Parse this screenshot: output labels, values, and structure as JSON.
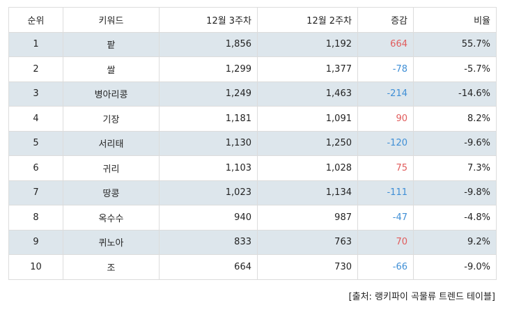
{
  "table": {
    "headers": {
      "rank": "순위",
      "keyword": "키워드",
      "week3": "12월 3주차",
      "week2": "12월 2주차",
      "change": "증감",
      "ratio": "비율"
    },
    "rows": [
      {
        "rank": "1",
        "keyword": "팥",
        "week3": "1,856",
        "week2": "1,192",
        "change": "664",
        "ratio": "55.7%",
        "trend": "up"
      },
      {
        "rank": "2",
        "keyword": "쌀",
        "week3": "1,299",
        "week2": "1,377",
        "change": "-78",
        "ratio": "-5.7%",
        "trend": "down"
      },
      {
        "rank": "3",
        "keyword": "병아리콩",
        "week3": "1,249",
        "week2": "1,463",
        "change": "-214",
        "ratio": "-14.6%",
        "trend": "down"
      },
      {
        "rank": "4",
        "keyword": "기장",
        "week3": "1,181",
        "week2": "1,091",
        "change": "90",
        "ratio": "8.2%",
        "trend": "up"
      },
      {
        "rank": "5",
        "keyword": "서리태",
        "week3": "1,130",
        "week2": "1,250",
        "change": "-120",
        "ratio": "-9.6%",
        "trend": "down"
      },
      {
        "rank": "6",
        "keyword": "귀리",
        "week3": "1,103",
        "week2": "1,028",
        "change": "75",
        "ratio": "7.3%",
        "trend": "up"
      },
      {
        "rank": "7",
        "keyword": "땅콩",
        "week3": "1,023",
        "week2": "1,134",
        "change": "-111",
        "ratio": "-9.8%",
        "trend": "down"
      },
      {
        "rank": "8",
        "keyword": "옥수수",
        "week3": "940",
        "week2": "987",
        "change": "-47",
        "ratio": "-4.8%",
        "trend": "down"
      },
      {
        "rank": "9",
        "keyword": "퀴노아",
        "week3": "833",
        "week2": "763",
        "change": "70",
        "ratio": "9.2%",
        "trend": "up"
      },
      {
        "rank": "10",
        "keyword": "조",
        "week3": "664",
        "week2": "730",
        "change": "-66",
        "ratio": "-9.0%",
        "trend": "down"
      }
    ]
  },
  "source": "[출처: 랭키파이 곡물류 트렌드 테이블]",
  "colors": {
    "alt_row_bg": "#dde6ec",
    "positive_change": "#e15c5c",
    "negative_change": "#3f8fd6",
    "border": "#dcdcdc"
  }
}
